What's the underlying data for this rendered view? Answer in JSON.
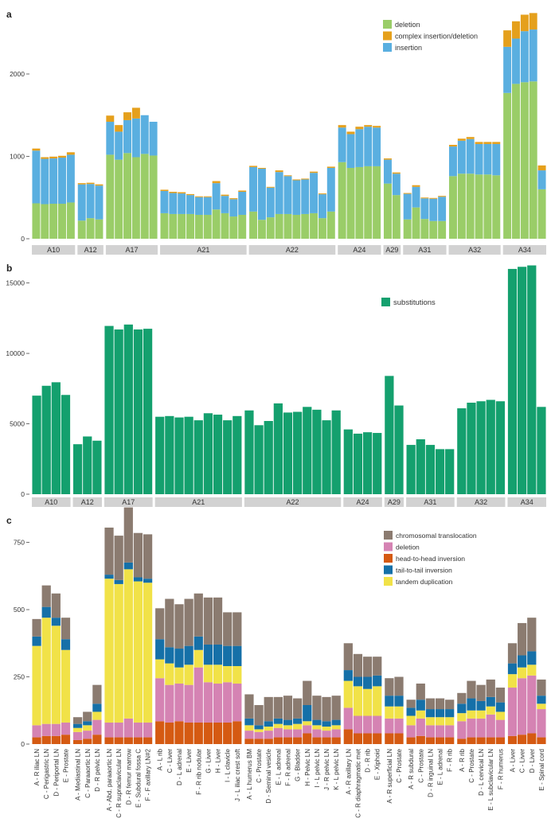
{
  "colors": {
    "deletion": "#9acd68",
    "complex": "#e5a01c",
    "insertion": "#5aafe0",
    "substitutions": "#14a06e",
    "translocation": "#8b7b70",
    "sv_deletion": "#d583b3",
    "h2h": "#d55a12",
    "t2t": "#1570a8",
    "tandem": "#f1e248",
    "strip": "#d2d2d2",
    "axis": "#4a4a4a"
  },
  "chart_data": [
    {
      "id": "a",
      "panel_label": "a",
      "type": "bar",
      "stacked": true,
      "ylim": [
        0,
        2850
      ],
      "yticks": [
        0,
        1000,
        2000
      ],
      "ytick_labels": [
        "0",
        "1000",
        "2000"
      ],
      "series": [
        {
          "key": "deletion",
          "name": "deletion",
          "color_key": "deletion",
          "values": [
            430,
            420,
            425,
            425,
            440,
            220,
            250,
            235,
            1020,
            960,
            1040,
            990,
            1030,
            1010,
            310,
            300,
            300,
            300,
            290,
            290,
            355,
            310,
            270,
            290,
            330,
            230,
            260,
            300,
            300,
            290,
            300,
            310,
            250,
            330,
            930,
            860,
            870,
            880,
            880,
            670,
            530,
            235,
            380,
            240,
            215,
            215,
            760,
            790,
            790,
            780,
            780,
            770,
            1770,
            1880,
            1900,
            1910,
            600
          ]
        },
        {
          "key": "insertion",
          "name": "insertion",
          "color_key": "insertion",
          "values": [
            640,
            550,
            550,
            560,
            580,
            440,
            415,
            410,
            400,
            340,
            400,
            470,
            470,
            410,
            270,
            255,
            250,
            230,
            215,
            215,
            320,
            210,
            210,
            280,
            540,
            620,
            360,
            510,
            460,
            420,
            420,
            490,
            290,
            530,
            420,
            410,
            460,
            480,
            470,
            290,
            260,
            310,
            250,
            250,
            270,
            295,
            360,
            400,
            420,
            370,
            370,
            380,
            560,
            550,
            620,
            630,
            230
          ]
        },
        {
          "key": "complex",
          "name": "complex insertion/deletion",
          "color_key": "complex",
          "values": [
            25,
            20,
            22,
            22,
            30,
            15,
            15,
            15,
            75,
            80,
            95,
            130,
            0,
            0,
            15,
            15,
            15,
            12,
            10,
            10,
            25,
            15,
            12,
            15,
            15,
            10,
            10,
            20,
            10,
            10,
            10,
            15,
            10,
            15,
            30,
            30,
            30,
            20,
            20,
            15,
            15,
            10,
            20,
            10,
            10,
            10,
            20,
            25,
            25,
            25,
            25,
            25,
            200,
            210,
            200,
            200,
            60
          ]
        }
      ],
      "legend": [
        {
          "label": "deletion",
          "color_key": "deletion"
        },
        {
          "label": "complex insertion/deletion",
          "color_key": "complex"
        },
        {
          "label": "insertion",
          "color_key": "insertion"
        }
      ]
    },
    {
      "id": "b",
      "panel_label": "b",
      "type": "bar",
      "stacked": true,
      "ylim": [
        0,
        16900
      ],
      "yticks": [
        0,
        5000,
        10000,
        15000
      ],
      "ytick_labels": [
        "0",
        "5000",
        "10000",
        "15000"
      ],
      "series": [
        {
          "key": "substitutions",
          "name": "substitutions",
          "color_key": "substitutions",
          "values": [
            7000,
            7700,
            7950,
            7050,
            3550,
            4100,
            3800,
            11950,
            11700,
            12050,
            11700,
            11750,
            5500,
            5550,
            5450,
            5500,
            5250,
            5750,
            5650,
            5250,
            5550,
            5950,
            4900,
            5200,
            6450,
            5800,
            5850,
            6200,
            6000,
            5250,
            5950,
            4600,
            4300,
            4400,
            4350,
            8400,
            6300,
            3500,
            3900,
            3500,
            3200,
            3200,
            6100,
            6500,
            6600,
            6700,
            6600,
            16000,
            16150,
            16250,
            6200
          ]
        }
      ],
      "legend": [
        {
          "label": "substitutions",
          "color_key": "substitutions"
        }
      ]
    },
    {
      "id": "c",
      "panel_label": "c",
      "type": "bar",
      "stacked": true,
      "ylim": [
        0,
        870
      ],
      "yticks": [
        0,
        250,
        500,
        750
      ],
      "ytick_labels": [
        "0",
        "250",
        "500",
        "750"
      ],
      "categories": [
        "A - R iliac LN",
        "C - Perigastric LN",
        "D - Periportal LN",
        "E - Prostate",
        "A - Mediastinal LN",
        "C - Paraaortic LN",
        "D - R pelvic LN",
        "A - Abd. paraaortic LN",
        "C - R supraclavicular LN",
        "D - R femur marrow",
        "E - Subdural fossa C",
        "F - F axillary LN#2",
        "A - L rib",
        "C - Liver",
        "D - L adrenal",
        "E - Liver",
        "F - R rib nodular",
        "G - Liver",
        "H - Liver",
        "I - L clavicle",
        "J - L iliac crest soft",
        "A - L humerus BM",
        "C - Prostate",
        "D - Seminal vesicle",
        "E - L adrenal",
        "F - R adrenal",
        "G - Bladder",
        "H - Pelvic LN",
        "I - L pelvic LN",
        "J - R pelvic LN",
        "K - L pelvic LN",
        "A - R axillary LN",
        "C - R diaphragmatic met",
        "D - R rib",
        "E - Xiphoid",
        "A - R superficial LN",
        "C - Prostate",
        "A - R subdural",
        "C - Prostate",
        "D - R inguinal LN",
        "E - L adrenal",
        "F - R rib",
        "A - R rib",
        "C - Prostate",
        "D - L cervical LN",
        "E - L subclavicular LN",
        "F - R humerus",
        "A - Liver",
        "C - Liver",
        "D - Liver",
        "E - Spinal cord"
      ],
      "series": [
        {
          "key": "h2h",
          "name": "head-to-head inversion",
          "color_key": "h2h",
          "values": [
            25,
            30,
            30,
            35,
            15,
            20,
            35,
            25,
            25,
            25,
            25,
            25,
            85,
            80,
            85,
            80,
            80,
            80,
            80,
            80,
            85,
            20,
            20,
            20,
            25,
            25,
            25,
            40,
            25,
            25,
            25,
            55,
            40,
            40,
            40,
            40,
            40,
            25,
            30,
            25,
            25,
            25,
            20,
            25,
            25,
            25,
            25,
            30,
            35,
            40,
            25
          ]
        },
        {
          "key": "sv_deletion",
          "name": "deletion",
          "color_key": "sv_deletion",
          "values": [
            45,
            45,
            45,
            45,
            30,
            30,
            55,
            55,
            55,
            70,
            55,
            55,
            160,
            140,
            140,
            140,
            205,
            150,
            145,
            150,
            140,
            30,
            25,
            30,
            35,
            30,
            30,
            30,
            30,
            25,
            30,
            80,
            65,
            65,
            65,
            55,
            55,
            45,
            65,
            45,
            45,
            45,
            65,
            70,
            70,
            85,
            65,
            180,
            210,
            215,
            105
          ]
        },
        {
          "key": "tandem",
          "name": "tandem duplication",
          "color_key": "tandem",
          "values": [
            295,
            395,
            365,
            270,
            15,
            20,
            30,
            535,
            515,
            555,
            525,
            520,
            70,
            80,
            60,
            75,
            65,
            65,
            70,
            60,
            65,
            20,
            10,
            15,
            15,
            15,
            20,
            15,
            15,
            15,
            15,
            100,
            110,
            100,
            110,
            45,
            45,
            35,
            30,
            30,
            30,
            30,
            30,
            30,
            30,
            30,
            30,
            50,
            40,
            40,
            20
          ]
        },
        {
          "key": "t2t",
          "name": "tail-to-tail inversion",
          "color_key": "t2t",
          "values": [
            35,
            40,
            30,
            40,
            15,
            15,
            30,
            15,
            15,
            25,
            15,
            15,
            75,
            60,
            70,
            70,
            50,
            75,
            75,
            75,
            75,
            25,
            15,
            20,
            20,
            20,
            20,
            60,
            20,
            20,
            20,
            40,
            35,
            45,
            40,
            40,
            40,
            30,
            40,
            30,
            30,
            30,
            35,
            45,
            35,
            35,
            35,
            40,
            45,
            50,
            30
          ]
        },
        {
          "key": "translocation",
          "name": "chromosomal translocation",
          "color_key": "translocation",
          "values": [
            65,
            80,
            90,
            80,
            25,
            35,
            70,
            175,
            165,
            205,
            165,
            165,
            115,
            180,
            165,
            175,
            160,
            175,
            175,
            125,
            125,
            90,
            75,
            90,
            80,
            90,
            75,
            90,
            90,
            90,
            90,
            100,
            85,
            75,
            70,
            65,
            70,
            30,
            60,
            40,
            40,
            35,
            40,
            65,
            60,
            65,
            55,
            75,
            120,
            125,
            60
          ]
        }
      ],
      "legend": [
        {
          "label": "chromosomal translocation",
          "color_key": "translocation"
        },
        {
          "label": "deletion",
          "color_key": "sv_deletion"
        },
        {
          "label": "head-to-head inversion",
          "color_key": "h2h"
        },
        {
          "label": "tail-to-tail inversion",
          "color_key": "t2t"
        },
        {
          "label": "tandem duplication",
          "color_key": "tandem"
        }
      ]
    }
  ],
  "groups_ab": [
    "A10",
    "A12",
    "A17",
    "A21",
    "A22",
    "A24",
    "A29",
    "A31",
    "A32",
    "A34"
  ],
  "group_sizes_a": [
    5,
    3,
    6,
    10,
    10,
    5,
    2,
    5,
    6,
    5
  ],
  "group_sizes_b": [
    4,
    3,
    5,
    9,
    10,
    4,
    2,
    5,
    5,
    4
  ],
  "group_sizes_c": [
    4,
    3,
    5,
    9,
    10,
    4,
    2,
    5,
    5,
    4
  ]
}
